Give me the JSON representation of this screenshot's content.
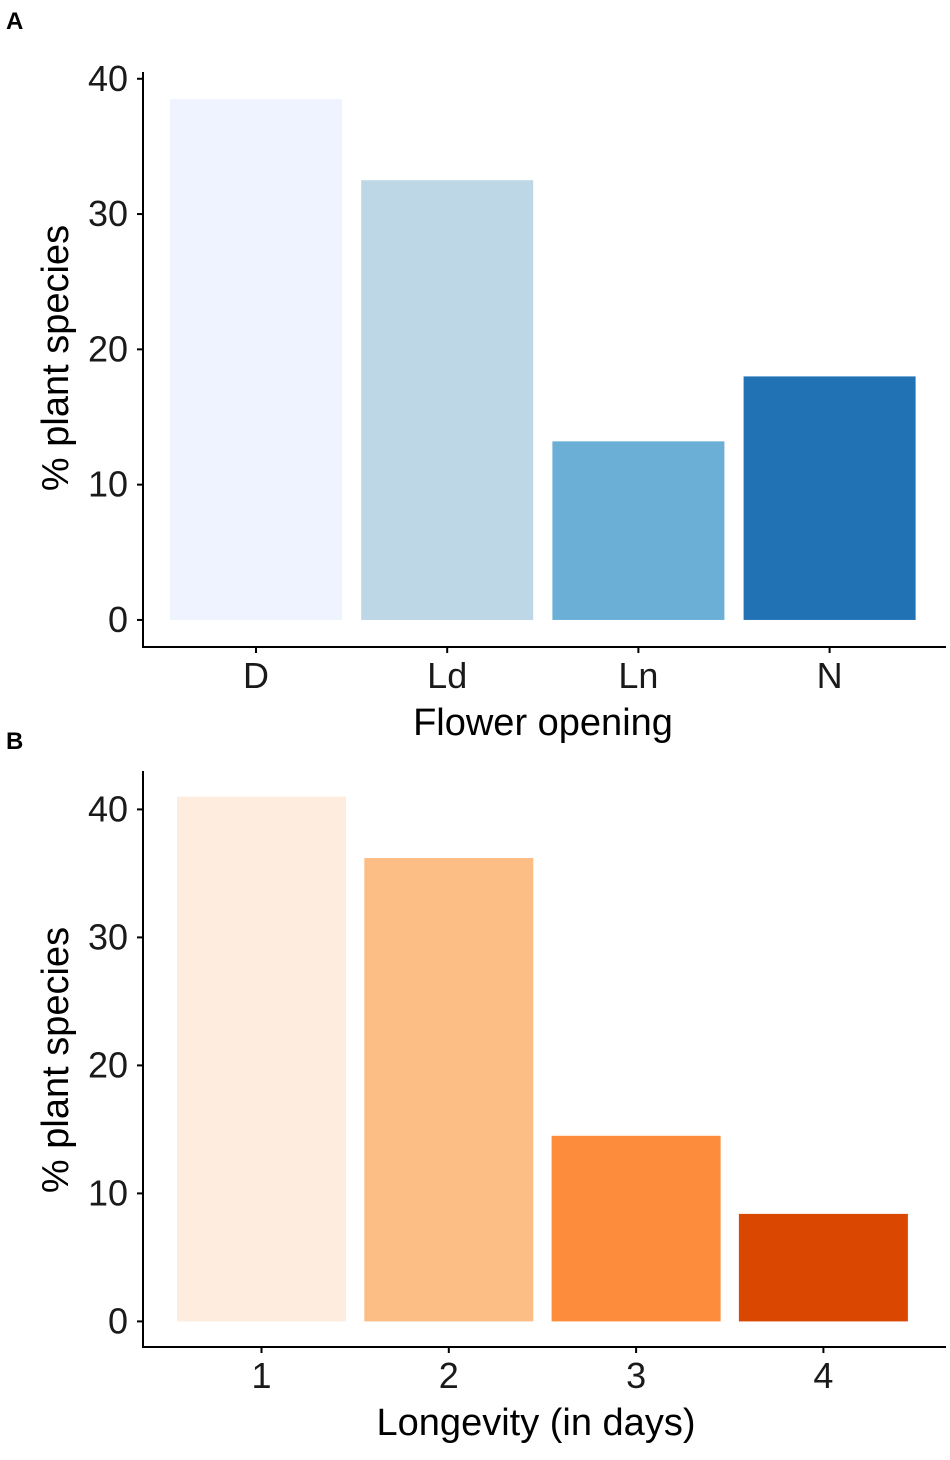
{
  "chart_data": [
    {
      "panel": "A",
      "type": "bar",
      "categories": [
        "D",
        "Ld",
        "Ln",
        "N"
      ],
      "values": [
        38.5,
        32.5,
        13.2,
        18.0
      ],
      "colors": [
        "#eff3ff",
        "#bdd7e7",
        "#6baed6",
        "#2171b5"
      ],
      "xlabel": "Flower opening",
      "ylabel": "% plant species",
      "yticks": [
        0,
        10,
        20,
        30,
        40
      ],
      "ylim": [
        -2,
        40.5
      ],
      "grid": false,
      "legend": "none"
    },
    {
      "panel": "B",
      "type": "bar",
      "categories": [
        "1",
        "2",
        "3",
        "4"
      ],
      "values": [
        41.0,
        36.2,
        14.5,
        8.4
      ],
      "colors": [
        "#feeddf",
        "#fdbe85",
        "#fd8d3c",
        "#d94701"
      ],
      "xlabel": "Longevity (in days)",
      "ylabel": "% plant species",
      "yticks": [
        0,
        10,
        20,
        30,
        40
      ],
      "ylim": [
        -2,
        43
      ],
      "grid": false,
      "legend": "none"
    }
  ]
}
